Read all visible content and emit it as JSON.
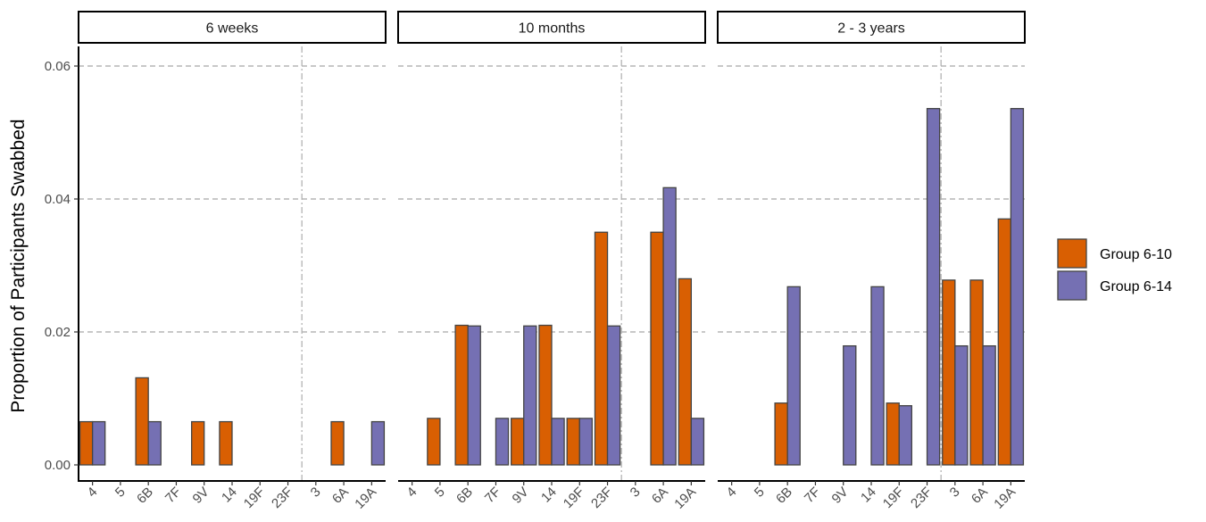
{
  "chart_data": {
    "type": "bar",
    "ylabel": "Proportion of Participants Swabbed",
    "xlabel": "",
    "ylim": [
      0,
      0.063
    ],
    "yticks": [
      0,
      0.02,
      0.04,
      0.06
    ],
    "ytick_labels": [
      "0.00",
      "0.02",
      "0.04",
      "0.06"
    ],
    "grid": "dashed horizontal at y ticks",
    "legend_position": "right",
    "categories": [
      "4",
      "5",
      "6B",
      "7F",
      "9V",
      "14",
      "19F",
      "23F",
      "3",
      "6A",
      "19A"
    ],
    "separator_after_category": "23F",
    "colors": {
      "Group 6-10": "#d95f02",
      "Group 6-14": "#7570b3"
    },
    "panels": [
      {
        "title": "6 weeks",
        "series": [
          {
            "name": "Group 6-10",
            "values": [
              0.0065,
              0,
              0.0131,
              0,
              0.0065,
              0.0065,
              0,
              0,
              0,
              0.0065,
              0
            ]
          },
          {
            "name": "Group 6-14",
            "values": [
              0.0065,
              0,
              0.0065,
              0,
              0,
              0,
              0,
              0,
              0,
              0,
              0.0065
            ]
          }
        ]
      },
      {
        "title": "10 months",
        "series": [
          {
            "name": "Group 6-10",
            "values": [
              0,
              0.007,
              0.021,
              0,
              0.007,
              0.021,
              0.007,
              0.035,
              0,
              0.035,
              0.028
            ]
          },
          {
            "name": "Group 6-14",
            "values": [
              0,
              0,
              0.0209,
              0.007,
              0.0209,
              0.007,
              0.007,
              0.0209,
              0,
              0.0417,
              0.007
            ]
          }
        ]
      },
      {
        "title": "2 - 3 years",
        "series": [
          {
            "name": "Group 6-10",
            "values": [
              0,
              0,
              0.0093,
              0,
              0,
              0,
              0.0093,
              0,
              0.0278,
              0.0278,
              0.037
            ]
          },
          {
            "name": "Group 6-14",
            "values": [
              0,
              0,
              0.0268,
              0,
              0.0179,
              0.0268,
              0.0089,
              0.0536,
              0.0179,
              0.0179,
              0.0536
            ]
          }
        ]
      }
    ]
  }
}
